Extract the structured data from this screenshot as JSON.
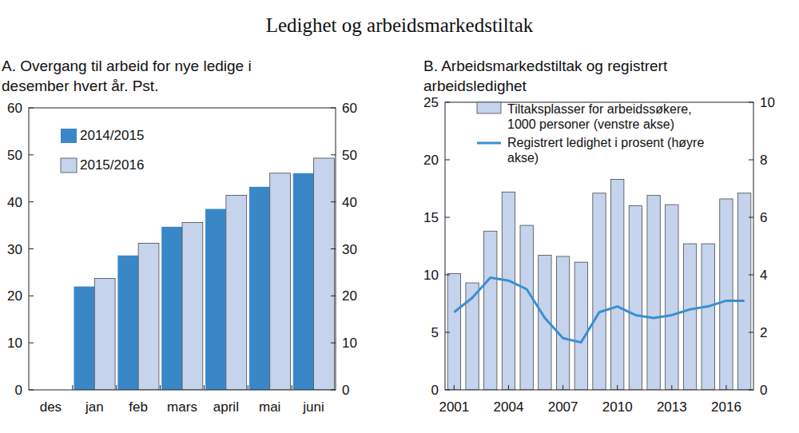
{
  "title": "Ledighet og arbeidsmarkedstiltak",
  "chart_data": [
    {
      "type": "bar",
      "title": "A. Overgang til arbeid for nye ledige i desember hvert år. Pst.",
      "categories": [
        "des",
        "jan",
        "feb",
        "mars",
        "april",
        "mai",
        "juni"
      ],
      "series": [
        {
          "name": "2014/2015",
          "color": "#3a87c8",
          "values": [
            null,
            22.0,
            28.6,
            34.7,
            38.5,
            43.2,
            46.1
          ]
        },
        {
          "name": "2015/2016",
          "color": "#c5d3ed",
          "values": [
            null,
            23.7,
            31.2,
            35.6,
            41.4,
            46.1,
            49.3
          ]
        }
      ],
      "ylim": [
        0,
        60
      ],
      "yticks": [
        0,
        10,
        20,
        30,
        40,
        50,
        60
      ],
      "grid": false,
      "legend": "top-left"
    },
    {
      "type": "bar",
      "title": "B. Arbeidsmarkedstiltak og registrert arbeidsledighet",
      "x": [
        2001,
        2002,
        2003,
        2004,
        2005,
        2006,
        2007,
        2008,
        2009,
        2010,
        2011,
        2012,
        2013,
        2014,
        2015,
        2016,
        2017
      ],
      "xlim": [
        2000.5,
        2017.5
      ],
      "xticks": [
        2001,
        2004,
        2007,
        2010,
        2013,
        2016
      ],
      "series": [
        {
          "name": "Tiltaksplasser for arbeidssøkere, 1000 personer (venstre akse)",
          "type": "bar",
          "color": "#c5d3ed",
          "values": [
            10.1,
            9.3,
            13.8,
            17.2,
            14.3,
            11.7,
            11.6,
            11.1,
            17.1,
            18.3,
            16.0,
            16.9,
            16.1,
            12.7,
            12.7,
            16.6,
            17.1
          ]
        },
        {
          "name": "Registrert ledighet i prosent (høyre akse)",
          "type": "line",
          "axis": "y2",
          "color": "#3a8fd0",
          "values": [
            2.7,
            3.2,
            3.9,
            3.8,
            3.5,
            2.5,
            1.8,
            1.65,
            2.7,
            2.9,
            2.6,
            2.5,
            2.6,
            2.8,
            2.9,
            3.1,
            3.1
          ]
        }
      ],
      "ylim": [
        0,
        25
      ],
      "yticks": [
        0,
        5,
        10,
        15,
        20,
        25
      ],
      "y2lim": [
        0,
        10
      ],
      "y2ticks": [
        0,
        2,
        4,
        6,
        8,
        10
      ],
      "grid": false,
      "legend": "top-left"
    }
  ]
}
